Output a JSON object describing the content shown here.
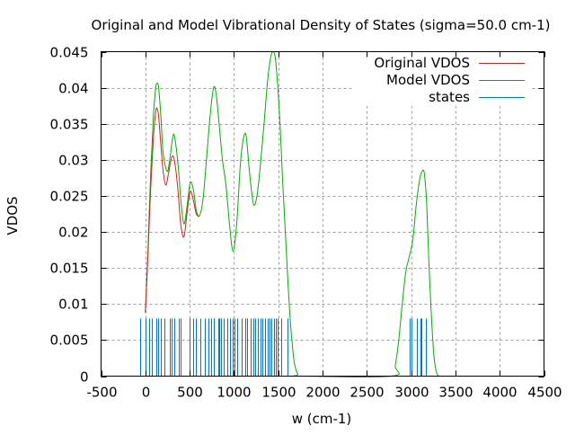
{
  "chart_data": {
    "type": "line",
    "title": "Original and Model Vibrational Density of States (sigma=50.0 cm-1)",
    "xlabel": "w (cm-1)",
    "ylabel": "VDOS",
    "xlim": [
      -500,
      4500
    ],
    "ylim": [
      0,
      0.045
    ],
    "xticks": [
      -500,
      0,
      500,
      1000,
      1500,
      2000,
      2500,
      3000,
      3500,
      4000,
      4500
    ],
    "yticks": [
      0,
      0.005,
      0.01,
      0.015,
      0.02,
      0.025,
      0.03,
      0.035,
      0.04,
      0.045
    ],
    "xtick_labels": [
      "-500",
      "0",
      "500",
      "1000",
      "1500",
      "2000",
      "2500",
      "3000",
      "3500",
      "4000",
      "4500"
    ],
    "ytick_labels": [
      "0",
      "0.005",
      "0.01",
      "0.015",
      "0.02",
      "0.025",
      "0.03",
      "0.035",
      "0.04",
      "0.045"
    ],
    "grid": true,
    "legend_position": "top-right",
    "series": [
      {
        "name": "Original VDOS",
        "color": "#e41a1c",
        "style": "line",
        "x": [
          0,
          30,
          60,
          90,
          115,
          130,
          150,
          175,
          200,
          230,
          260,
          290,
          315,
          340,
          370,
          400,
          435,
          470,
          505,
          540,
          575,
          610
        ],
        "y": [
          0.0088,
          0.017,
          0.026,
          0.033,
          0.0365,
          0.0372,
          0.036,
          0.032,
          0.0285,
          0.0265,
          0.028,
          0.03,
          0.0305,
          0.029,
          0.0255,
          0.021,
          0.0193,
          0.0225,
          0.0256,
          0.0245,
          0.0225,
          0.0222
        ]
      },
      {
        "name": "Model VDOS",
        "color": "#00b000",
        "style": "line",
        "x": [
          0,
          30,
          60,
          90,
          115,
          130,
          150,
          175,
          200,
          245,
          275,
          315,
          345,
          375,
          400,
          435,
          470,
          505,
          540,
          575,
          610,
          650,
          690,
          730,
          770,
          800,
          840,
          870,
          910,
          950,
          990,
          1030,
          1070,
          1100,
          1135,
          1170,
          1200,
          1225,
          1260,
          1300,
          1340,
          1380,
          1420,
          1460,
          1490,
          1520,
          1550,
          1580,
          1610,
          1640,
          1680,
          1720,
          1760,
          2780,
          2820,
          2860,
          2900,
          2940,
          2980,
          3020,
          3060,
          3100,
          3130,
          3150,
          3175,
          3200,
          3230,
          3260,
          3290,
          3320
        ],
        "y": [
          0.0088,
          0.018,
          0.028,
          0.036,
          0.0398,
          0.0406,
          0.04,
          0.036,
          0.031,
          0.0284,
          0.03,
          0.0335,
          0.032,
          0.0285,
          0.0245,
          0.0211,
          0.0235,
          0.0268,
          0.026,
          0.023,
          0.0222,
          0.0245,
          0.03,
          0.036,
          0.04,
          0.039,
          0.034,
          0.03,
          0.0265,
          0.021,
          0.0173,
          0.021,
          0.029,
          0.0325,
          0.0335,
          0.029,
          0.0255,
          0.0237,
          0.025,
          0.0295,
          0.035,
          0.041,
          0.0445,
          0.0446,
          0.041,
          0.035,
          0.027,
          0.02,
          0.013,
          0.007,
          0.002,
          0.0003,
          0,
          0,
          0.0015,
          0.005,
          0.01,
          0.0145,
          0.0166,
          0.019,
          0.024,
          0.0275,
          0.0285,
          0.028,
          0.024,
          0.016,
          0.008,
          0.0025,
          0.0004,
          0
        ]
      },
      {
        "name": "states",
        "color": "#0072de",
        "style": "impulses",
        "height": 0.008,
        "x": [
          -55,
          0,
          45,
          70,
          120,
          140,
          170,
          220,
          280,
          295,
          325,
          375,
          395,
          495,
          500,
          535,
          575,
          625,
          675,
          715,
          745,
          775,
          820,
          835,
          850,
          885,
          920,
          960,
          990,
          1010,
          1035,
          1085,
          1125,
          1150,
          1190,
          1220,
          1240,
          1265,
          1300,
          1325,
          1350,
          1380,
          1400,
          1420,
          1450,
          1475,
          1490,
          1530,
          1600,
          2980,
          3000,
          3060,
          3110,
          3120,
          3165
        ]
      }
    ]
  }
}
